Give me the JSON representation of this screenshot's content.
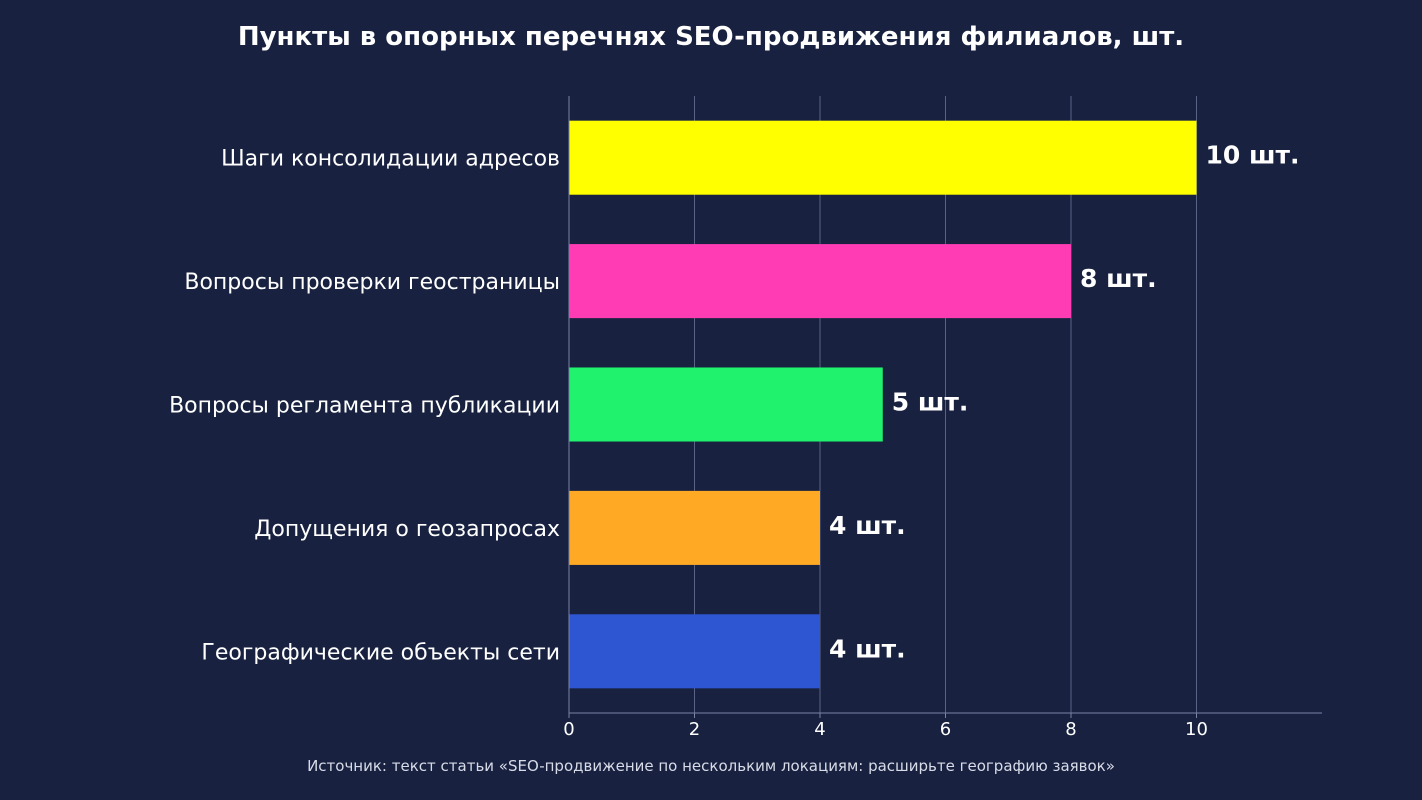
{
  "chart_data": {
    "type": "bar",
    "orientation": "horizontal",
    "title": "Пункты в опорных перечнях SEO-продвижения филиалов, шт.",
    "categories": [
      "Шаги консолидации адресов",
      "Вопросы проверки геостраницы",
      "Вопросы регламента публикации",
      "Допущения о геозапросах",
      "Географические объекты сети"
    ],
    "values": [
      10,
      8,
      5,
      4,
      4
    ],
    "data_labels": [
      "10 шт.",
      "8 шт.",
      "5 шт.",
      "4 шт.",
      "4 шт."
    ],
    "colors": [
      "#ffff00",
      "#ff3cb4",
      "#21f26e",
      "#ffa924",
      "#2e55d2"
    ],
    "xlim": [
      0,
      12
    ],
    "xticks": [
      0,
      2,
      4,
      6,
      8,
      10
    ],
    "xlabel": "",
    "ylabel": "",
    "grid": "vertical",
    "legend": "none"
  },
  "source_note": "Источник: текст статьи «SEO-продвижение по нескольким локациям: расширьте географию заявок»",
  "colors": {
    "background": "#182240",
    "grid": "#5a6286",
    "axis": "#7a82a6",
    "text": "#ffffff"
  }
}
